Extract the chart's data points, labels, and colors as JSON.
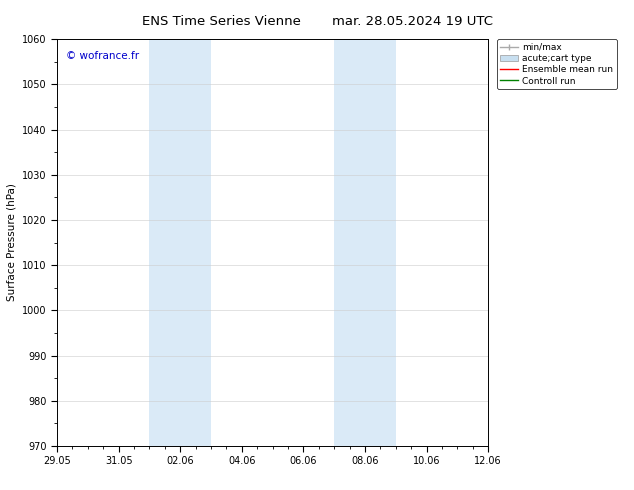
{
  "title_left": "ENS Time Series Vienne",
  "title_right": "mar. 28.05.2024 19 UTC",
  "ylabel": "Surface Pressure (hPa)",
  "ylim": [
    970,
    1060
  ],
  "yticks": [
    970,
    980,
    990,
    1000,
    1010,
    1020,
    1030,
    1040,
    1050,
    1060
  ],
  "xlim": [
    0,
    14
  ],
  "xtick_labels": [
    "29.05",
    "31.05",
    "02.06",
    "04.06",
    "06.06",
    "08.06",
    "10.06",
    "12.06"
  ],
  "xtick_positions": [
    0,
    2,
    4,
    6,
    8,
    10,
    12,
    14
  ],
  "shaded_regions": [
    {
      "start": 3.0,
      "end": 4.0
    },
    {
      "start": 4.0,
      "end": 5.0
    },
    {
      "start": 9.0,
      "end": 10.0
    },
    {
      "start": 10.0,
      "end": 11.0
    }
  ],
  "shaded_color": "#daeaf7",
  "background_color": "#ffffff",
  "watermark_text": "© wofrance.fr",
  "watermark_color": "#0000cc",
  "legend_entries": [
    {
      "label": "min/max"
    },
    {
      "label": "acute;cart type"
    },
    {
      "label": "Ensemble mean run"
    },
    {
      "label": "Controll run"
    }
  ],
  "minmax_color": "#aaaaaa",
  "acute_color": "#c8dff0",
  "ens_color": "#ff0000",
  "ctrl_color": "#008000",
  "grid_color": "#cccccc",
  "tick_color": "#000000",
  "spine_color": "#000000",
  "title_fontsize": 9.5,
  "label_fontsize": 7.5,
  "tick_fontsize": 7,
  "legend_fontsize": 6.5,
  "watermark_fontsize": 7.5
}
